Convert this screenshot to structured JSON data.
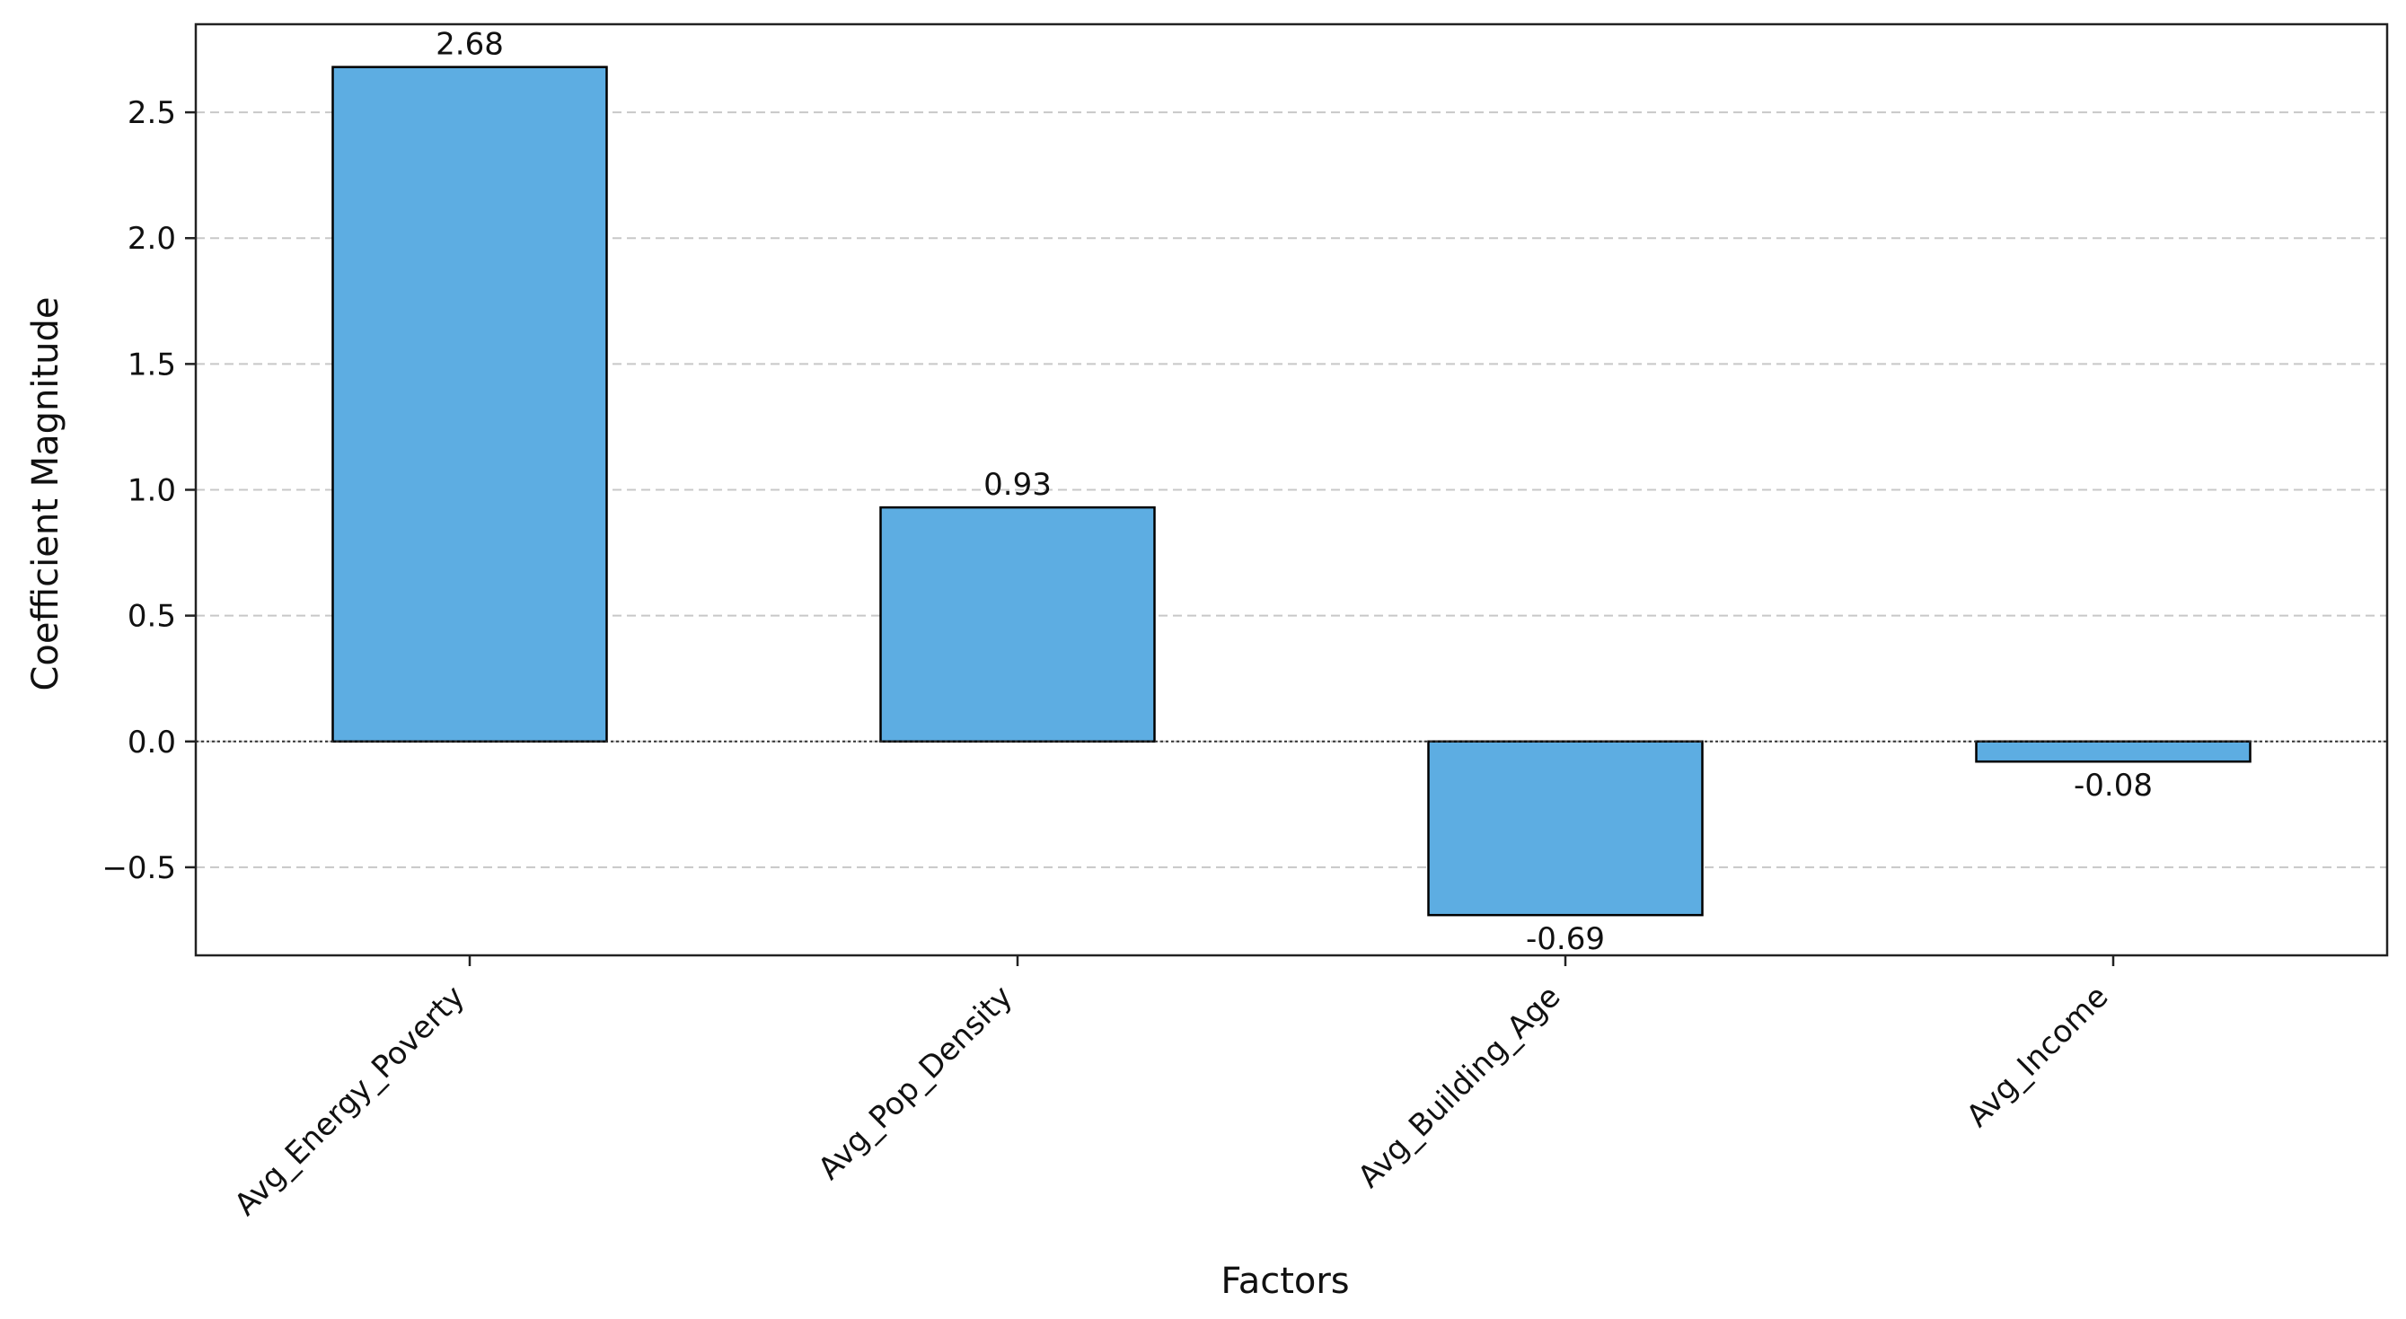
{
  "chart_data": {
    "type": "bar",
    "title": "",
    "xlabel": "Factors",
    "ylabel": "Coefficient Magnitude",
    "categories": [
      "Avg_Energy_Poverty",
      "Avg_Pop_Density",
      "Avg_Building_Age",
      "Avg_Income"
    ],
    "values": [
      2.68,
      0.93,
      -0.69,
      -0.08
    ],
    "value_labels": [
      "2.68",
      "0.93",
      "-0.69",
      "-0.08"
    ],
    "ylim": [
      -0.85,
      2.85
    ],
    "yticks": [
      -0.5,
      0.0,
      0.5,
      1.0,
      1.5,
      2.0,
      2.5
    ],
    "ytick_labels": [
      "−0.5",
      "0.0",
      "0.5",
      "1.0",
      "1.5",
      "2.0",
      "2.5"
    ],
    "grid": {
      "y": true,
      "x": false,
      "style": "dashed"
    },
    "legend": "none",
    "colors": {
      "bar_fill": "#5DADE2",
      "bar_edge": "#000000",
      "grid": "#c8c8c8",
      "axis": "#222222"
    }
  }
}
